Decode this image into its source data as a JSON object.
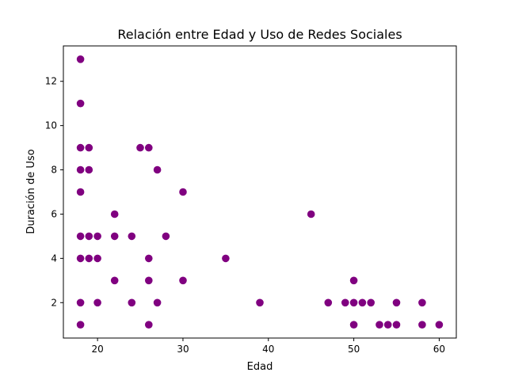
{
  "chart_data": {
    "type": "scatter",
    "title": "Relación entre Edad y Uso de Redes Sociales",
    "xlabel": "Edad",
    "ylabel": "Duración de Uso",
    "xlim": [
      16,
      62
    ],
    "ylim": [
      0.4,
      13.6
    ],
    "xticks": [
      "20",
      "30",
      "40",
      "50",
      "60"
    ],
    "yticks": [
      "2",
      "4",
      "6",
      "8",
      "10",
      "12"
    ],
    "grid": false,
    "color": "#800080",
    "points": [
      {
        "x": 18,
        "y": 13
      },
      {
        "x": 18,
        "y": 11
      },
      {
        "x": 18,
        "y": 9
      },
      {
        "x": 18,
        "y": 8
      },
      {
        "x": 18,
        "y": 7
      },
      {
        "x": 18,
        "y": 5
      },
      {
        "x": 18,
        "y": 4
      },
      {
        "x": 18,
        "y": 2
      },
      {
        "x": 18,
        "y": 1
      },
      {
        "x": 19,
        "y": 9
      },
      {
        "x": 19,
        "y": 8
      },
      {
        "x": 19,
        "y": 5
      },
      {
        "x": 19,
        "y": 4
      },
      {
        "x": 20,
        "y": 5
      },
      {
        "x": 20,
        "y": 4
      },
      {
        "x": 20,
        "y": 2
      },
      {
        "x": 22,
        "y": 6
      },
      {
        "x": 22,
        "y": 5
      },
      {
        "x": 22,
        "y": 3
      },
      {
        "x": 24,
        "y": 5
      },
      {
        "x": 24,
        "y": 2
      },
      {
        "x": 25,
        "y": 9
      },
      {
        "x": 26,
        "y": 9
      },
      {
        "x": 26,
        "y": 4
      },
      {
        "x": 26,
        "y": 3
      },
      {
        "x": 26,
        "y": 1
      },
      {
        "x": 27,
        "y": 8
      },
      {
        "x": 27,
        "y": 2
      },
      {
        "x": 28,
        "y": 5
      },
      {
        "x": 30,
        "y": 7
      },
      {
        "x": 30,
        "y": 3
      },
      {
        "x": 35,
        "y": 4
      },
      {
        "x": 39,
        "y": 2
      },
      {
        "x": 45,
        "y": 6
      },
      {
        "x": 47,
        "y": 2
      },
      {
        "x": 49,
        "y": 2
      },
      {
        "x": 50,
        "y": 3
      },
      {
        "x": 50,
        "y": 2
      },
      {
        "x": 50,
        "y": 1
      },
      {
        "x": 51,
        "y": 2
      },
      {
        "x": 52,
        "y": 2
      },
      {
        "x": 53,
        "y": 1
      },
      {
        "x": 54,
        "y": 1
      },
      {
        "x": 55,
        "y": 2
      },
      {
        "x": 55,
        "y": 1
      },
      {
        "x": 58,
        "y": 2
      },
      {
        "x": 58,
        "y": 1
      },
      {
        "x": 60,
        "y": 1
      }
    ]
  }
}
